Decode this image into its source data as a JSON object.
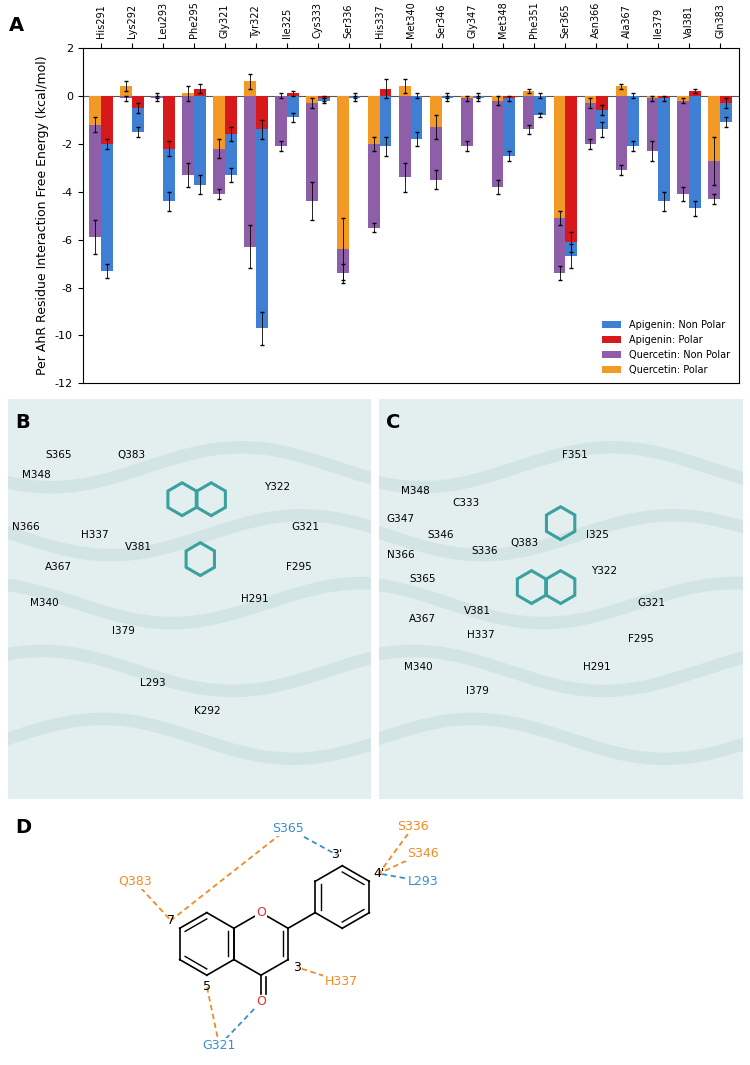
{
  "panel_labels": [
    "A",
    "B",
    "C",
    "D"
  ],
  "chart_data": {
    "type": "bar",
    "stacked": true,
    "grid": false,
    "legend": "lower right",
    "y_label": "Per AhR Residue Interaction Free Energy (kcal/mol)",
    "categories": [
      "His291",
      "Lys292",
      "Leu293",
      "Phe295",
      "Gly321",
      "Tyr322",
      "Ile325",
      "Cys333",
      "Ser336",
      "His337",
      "Met340",
      "Ser346",
      "Gly347",
      "Met348",
      "Phe351",
      "Ser365",
      "Asn366",
      "Ala367",
      "Ile379",
      "Val381",
      "Gln383"
    ],
    "ylim": [
      -12,
      2
    ],
    "yticks": [
      -12,
      -10,
      -8,
      -6,
      -4,
      -2,
      0,
      2
    ],
    "series": [
      {
        "name": "Apigenin: Non Polar",
        "color": "#3f7fd4",
        "values": [
          -5.3,
          -1.0,
          -2.2,
          -3.7,
          -1.7,
          -8.3,
          -0.9,
          -0.1,
          -0.1,
          -2.1,
          -1.8,
          -0.1,
          -0.1,
          -2.4,
          -0.8,
          -0.6,
          -0.8,
          -2.1,
          -4.3,
          -4.7,
          -0.8
        ],
        "errors": [
          0.3,
          0.2,
          0.4,
          0.4,
          0.3,
          0.7,
          0.2,
          0.1,
          0.1,
          0.4,
          0.3,
          0.1,
          0.1,
          0.2,
          0.1,
          0.5,
          0.3,
          0.2,
          0.4,
          0.3,
          0.2
        ]
      },
      {
        "name": "Apigenin: Polar",
        "color": "#d7191c",
        "values": [
          -2.0,
          -0.5,
          -2.2,
          0.3,
          -1.6,
          -1.4,
          0.1,
          -0.1,
          0.0,
          0.3,
          0.0,
          0.0,
          0.0,
          -0.1,
          0.0,
          -6.1,
          -0.6,
          0.0,
          -0.1,
          0.2,
          -0.3
        ],
        "errors": [
          0.2,
          0.2,
          0.3,
          0.2,
          0.3,
          0.4,
          0.1,
          0.1,
          0.1,
          0.4,
          0.1,
          0.1,
          0.1,
          0.1,
          0.1,
          0.4,
          0.2,
          0.1,
          0.1,
          0.1,
          0.2
        ]
      },
      {
        "name": "Quercetin: Non Polar",
        "color": "#8e5fa8",
        "values": [
          -4.7,
          -0.1,
          -0.1,
          -3.3,
          -1.9,
          -6.3,
          -2.1,
          -4.1,
          -1.0,
          -3.5,
          -3.4,
          -2.2,
          -2.0,
          -3.6,
          -1.4,
          -2.3,
          -1.7,
          -3.1,
          -2.2,
          -3.9,
          -1.6
        ],
        "errors": [
          0.7,
          0.1,
          0.1,
          0.5,
          0.2,
          0.9,
          0.2,
          0.8,
          0.4,
          0.2,
          0.6,
          0.4,
          0.2,
          0.3,
          0.2,
          0.3,
          0.2,
          0.2,
          0.4,
          0.3,
          0.2
        ]
      },
      {
        "name": "Quercetin: Polar",
        "color": "#f39a26",
        "values": [
          -1.2,
          0.4,
          0.0,
          0.1,
          -2.2,
          0.6,
          0.0,
          -0.3,
          -6.4,
          -2.0,
          0.4,
          -1.3,
          -0.1,
          -0.2,
          0.2,
          -5.1,
          -0.3,
          0.4,
          -0.1,
          -0.2,
          -2.7
        ],
        "errors": [
          0.3,
          0.2,
          0.1,
          0.3,
          0.4,
          0.3,
          0.1,
          0.2,
          1.3,
          0.3,
          0.3,
          0.5,
          0.1,
          0.2,
          0.1,
          0.3,
          0.2,
          0.1,
          0.1,
          0.1,
          1.0
        ]
      }
    ]
  },
  "structure_b": {
    "labels": [
      "M348",
      "S365",
      "Q383",
      "Y322",
      "N366",
      "H337",
      "G321",
      "V381",
      "A367",
      "F295",
      "M340",
      "H291",
      "I379",
      "L293",
      "K292"
    ]
  },
  "structure_c": {
    "labels": [
      "F351",
      "M348",
      "C333",
      "G347",
      "S346",
      "S336",
      "Q383",
      "I325",
      "N366",
      "S365",
      "Y322",
      "G321",
      "A367",
      "V381",
      "H337",
      "F295",
      "H291",
      "M340",
      "I379"
    ]
  },
  "diagram": {
    "atoms": [
      "7",
      "5",
      "3",
      "3'",
      "4'",
      "O",
      "O"
    ],
    "residues": [
      {
        "label": "S365",
        "color": "#3d8fc4"
      },
      {
        "label": "Q383",
        "color": "#f08a24"
      },
      {
        "label": "S336",
        "color": "#f08a24"
      },
      {
        "label": "S346",
        "color": "#f08a24"
      },
      {
        "label": "L293",
        "color": "#3d8fc4"
      },
      {
        "label": "G321",
        "color": "#3d8fc4"
      },
      {
        "label": "H337",
        "color": "#f08a24"
      }
    ],
    "contacts": [
      {
        "residue": "S365",
        "atom": 0,
        "color": "#f08a24"
      },
      {
        "residue": "S365",
        "atom": 3,
        "color": "#3d8fc4"
      },
      {
        "residue": "Q383",
        "atom": 0,
        "color": "#f08a24"
      },
      {
        "residue": "S336",
        "atom": 4,
        "color": "#f08a24"
      },
      {
        "residue": "S346",
        "atom": 4,
        "color": "#f08a24"
      },
      {
        "residue": "L293",
        "atom": 4,
        "color": "#3d8fc4"
      },
      {
        "residue": "G321",
        "atom": 1,
        "color": "#f08a24"
      },
      {
        "residue": "G321",
        "atom": 6,
        "color": "#3d8fc4"
      },
      {
        "residue": "H337",
        "atom": 2,
        "color": "#f08a24"
      }
    ]
  }
}
